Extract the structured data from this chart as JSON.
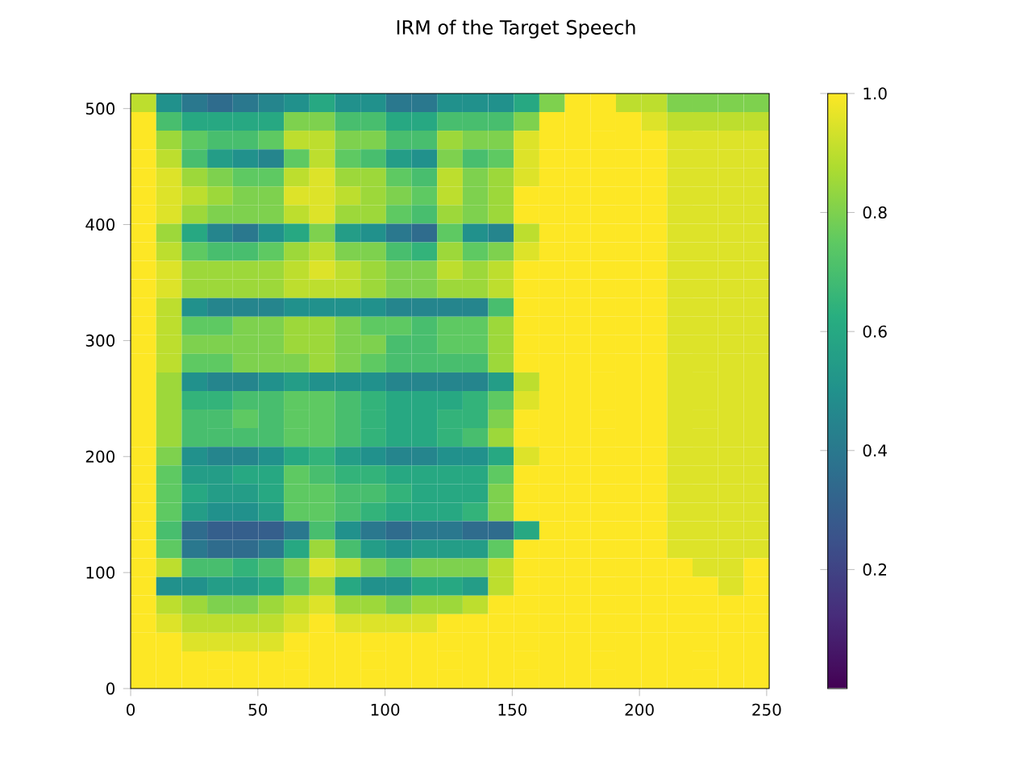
{
  "chart_data": {
    "type": "heatmap",
    "title": "IRM of the Target Speech",
    "cells": [
      [
        0.9,
        0.5,
        0.4,
        0.35,
        0.4,
        0.45,
        0.5,
        0.6,
        0.5,
        0.5,
        0.4,
        0.4,
        0.5,
        0.5,
        0.5,
        0.6,
        0.8,
        1,
        1,
        0.9,
        0.9,
        0.8,
        0.8,
        0.8,
        0.8
      ],
      [
        1,
        0.7,
        0.6,
        0.6,
        0.6,
        0.6,
        0.8,
        0.8,
        0.7,
        0.7,
        0.6,
        0.6,
        0.7,
        0.7,
        0.7,
        0.8,
        1,
        1,
        1,
        1,
        0.95,
        0.9,
        0.9,
        0.9,
        0.9
      ],
      [
        1,
        0.85,
        0.75,
        0.7,
        0.7,
        0.75,
        0.9,
        0.9,
        0.8,
        0.8,
        0.7,
        0.7,
        0.85,
        0.8,
        0.8,
        0.95,
        1,
        1,
        1,
        1,
        1,
        0.95,
        0.95,
        0.95,
        0.95
      ],
      [
        1,
        0.9,
        0.7,
        0.55,
        0.5,
        0.45,
        0.75,
        0.9,
        0.75,
        0.7,
        0.55,
        0.5,
        0.8,
        0.7,
        0.75,
        0.95,
        1,
        1,
        1,
        1,
        1,
        0.95,
        0.95,
        0.95,
        0.95
      ],
      [
        1,
        0.95,
        0.85,
        0.8,
        0.75,
        0.75,
        0.9,
        0.95,
        0.85,
        0.85,
        0.75,
        0.7,
        0.9,
        0.8,
        0.85,
        0.95,
        1,
        1,
        1,
        1,
        1,
        0.95,
        0.95,
        0.95,
        0.95
      ],
      [
        1,
        0.95,
        0.9,
        0.85,
        0.8,
        0.8,
        0.95,
        0.95,
        0.9,
        0.85,
        0.8,
        0.75,
        0.9,
        0.8,
        0.85,
        1,
        1,
        1,
        1,
        1,
        1,
        0.95,
        0.95,
        0.95,
        0.95
      ],
      [
        1,
        0.95,
        0.85,
        0.8,
        0.8,
        0.8,
        0.9,
        0.95,
        0.85,
        0.85,
        0.75,
        0.7,
        0.85,
        0.8,
        0.85,
        1,
        1,
        1,
        1,
        1,
        1,
        0.95,
        0.95,
        0.95,
        0.95
      ],
      [
        1,
        0.85,
        0.6,
        0.45,
        0.4,
        0.5,
        0.6,
        0.8,
        0.55,
        0.5,
        0.4,
        0.35,
        0.75,
        0.5,
        0.45,
        0.9,
        1,
        1,
        1,
        1,
        1,
        0.95,
        0.95,
        0.95,
        0.95
      ],
      [
        1,
        0.9,
        0.75,
        0.7,
        0.7,
        0.75,
        0.85,
        0.9,
        0.8,
        0.8,
        0.7,
        0.65,
        0.85,
        0.75,
        0.8,
        0.95,
        1,
        1,
        1,
        1,
        1,
        0.95,
        0.95,
        0.95,
        0.95
      ],
      [
        1,
        0.95,
        0.85,
        0.85,
        0.85,
        0.85,
        0.9,
        0.95,
        0.9,
        0.85,
        0.8,
        0.8,
        0.9,
        0.85,
        0.9,
        1,
        1,
        1,
        1,
        1,
        1,
        0.95,
        0.95,
        0.95,
        0.95
      ],
      [
        1,
        0.95,
        0.85,
        0.85,
        0.85,
        0.85,
        0.9,
        0.9,
        0.9,
        0.85,
        0.8,
        0.8,
        0.85,
        0.85,
        0.9,
        1,
        1,
        1,
        1,
        1,
        1,
        0.95,
        0.95,
        0.95,
        0.95
      ],
      [
        1,
        0.9,
        0.5,
        0.45,
        0.45,
        0.45,
        0.5,
        0.5,
        0.5,
        0.5,
        0.45,
        0.45,
        0.45,
        0.45,
        0.7,
        1,
        1,
        1,
        1,
        1,
        1,
        0.95,
        0.95,
        0.95,
        0.95
      ],
      [
        1,
        0.9,
        0.75,
        0.75,
        0.8,
        0.8,
        0.85,
        0.85,
        0.8,
        0.75,
        0.75,
        0.7,
        0.75,
        0.75,
        0.85,
        1,
        1,
        1,
        1,
        1,
        1,
        0.95,
        0.95,
        0.95,
        0.95
      ],
      [
        1,
        0.9,
        0.8,
        0.8,
        0.8,
        0.8,
        0.85,
        0.85,
        0.8,
        0.8,
        0.7,
        0.7,
        0.75,
        0.75,
        0.85,
        1,
        1,
        1,
        1,
        1,
        1,
        0.95,
        0.95,
        0.95,
        0.95
      ],
      [
        1,
        0.9,
        0.75,
        0.75,
        0.8,
        0.8,
        0.8,
        0.85,
        0.8,
        0.75,
        0.7,
        0.7,
        0.7,
        0.7,
        0.85,
        1,
        1,
        1,
        1,
        1,
        1,
        0.95,
        0.95,
        0.95,
        0.95
      ],
      [
        1,
        0.85,
        0.5,
        0.45,
        0.45,
        0.5,
        0.55,
        0.5,
        0.5,
        0.5,
        0.45,
        0.45,
        0.45,
        0.45,
        0.55,
        0.9,
        1,
        1,
        1,
        1,
        1,
        0.95,
        0.95,
        0.95,
        0.95
      ],
      [
        1,
        0.85,
        0.65,
        0.65,
        0.7,
        0.7,
        0.75,
        0.75,
        0.7,
        0.65,
        0.6,
        0.6,
        0.6,
        0.65,
        0.75,
        0.95,
        1,
        1,
        1,
        1,
        1,
        0.95,
        0.95,
        0.95,
        0.95
      ],
      [
        1,
        0.85,
        0.7,
        0.7,
        0.75,
        0.7,
        0.75,
        0.75,
        0.7,
        0.65,
        0.6,
        0.6,
        0.65,
        0.65,
        0.8,
        1,
        1,
        1,
        1,
        1,
        1,
        0.95,
        0.95,
        0.95,
        0.95
      ],
      [
        1,
        0.85,
        0.7,
        0.7,
        0.7,
        0.7,
        0.75,
        0.75,
        0.7,
        0.65,
        0.6,
        0.6,
        0.65,
        0.7,
        0.85,
        1,
        1,
        1,
        1,
        1,
        1,
        0.95,
        0.95,
        0.95,
        0.95
      ],
      [
        1,
        0.8,
        0.5,
        0.45,
        0.45,
        0.5,
        0.6,
        0.65,
        0.55,
        0.5,
        0.45,
        0.45,
        0.5,
        0.5,
        0.6,
        0.95,
        1,
        1,
        1,
        1,
        1,
        0.95,
        0.95,
        0.95,
        0.95
      ],
      [
        1,
        0.75,
        0.55,
        0.55,
        0.6,
        0.6,
        0.75,
        0.7,
        0.65,
        0.65,
        0.6,
        0.6,
        0.6,
        0.6,
        0.75,
        1,
        1,
        1,
        1,
        1,
        1,
        0.95,
        0.95,
        0.95,
        0.95
      ],
      [
        1,
        0.75,
        0.6,
        0.55,
        0.55,
        0.6,
        0.75,
        0.75,
        0.7,
        0.7,
        0.65,
        0.6,
        0.6,
        0.6,
        0.8,
        1,
        1,
        1,
        1,
        1,
        1,
        0.95,
        0.95,
        0.95,
        0.95
      ],
      [
        1,
        0.75,
        0.55,
        0.5,
        0.5,
        0.55,
        0.75,
        0.75,
        0.7,
        0.65,
        0.6,
        0.6,
        0.6,
        0.65,
        0.8,
        1,
        1,
        1,
        1,
        1,
        1,
        0.95,
        0.95,
        0.95,
        0.95
      ],
      [
        1,
        0.7,
        0.35,
        0.3,
        0.3,
        0.3,
        0.4,
        0.7,
        0.5,
        0.4,
        0.35,
        0.4,
        0.4,
        0.35,
        0.35,
        0.6,
        1,
        1,
        1,
        1,
        1,
        0.95,
        0.95,
        0.95,
        0.95
      ],
      [
        1,
        0.75,
        0.4,
        0.35,
        0.35,
        0.4,
        0.6,
        0.85,
        0.7,
        0.55,
        0.5,
        0.55,
        0.55,
        0.55,
        0.75,
        1,
        1,
        1,
        1,
        1,
        1,
        0.95,
        0.95,
        0.95,
        0.95
      ],
      [
        1,
        0.9,
        0.7,
        0.7,
        0.65,
        0.7,
        0.8,
        0.95,
        0.9,
        0.8,
        0.75,
        0.8,
        0.8,
        0.8,
        0.9,
        1,
        1,
        1,
        1,
        1,
        1,
        1,
        0.95,
        0.95,
        1
      ],
      [
        1,
        0.5,
        0.5,
        0.55,
        0.55,
        0.6,
        0.75,
        0.85,
        0.6,
        0.5,
        0.5,
        0.6,
        0.6,
        0.55,
        0.9,
        1,
        1,
        1,
        1,
        1,
        1,
        1,
        1,
        0.95,
        1
      ],
      [
        1,
        0.9,
        0.85,
        0.8,
        0.8,
        0.85,
        0.9,
        0.95,
        0.85,
        0.85,
        0.8,
        0.85,
        0.85,
        0.9,
        1,
        1,
        1,
        1,
        1,
        1,
        1,
        1,
        1,
        1,
        1
      ],
      [
        1,
        0.95,
        0.9,
        0.9,
        0.9,
        0.9,
        0.95,
        1,
        0.95,
        0.95,
        0.95,
        0.95,
        1,
        1,
        1,
        1,
        1,
        1,
        1,
        1,
        1,
        1,
        1,
        1,
        1
      ],
      [
        1,
        1,
        0.95,
        0.95,
        0.95,
        0.95,
        1,
        1,
        1,
        1,
        1,
        1,
        1,
        1,
        1,
        1,
        1,
        1,
        1,
        1,
        1,
        1,
        1,
        1,
        1
      ],
      [
        1,
        1,
        1,
        1,
        1,
        1,
        1,
        1,
        1,
        1,
        1,
        1,
        1,
        1,
        1,
        1,
        1,
        1,
        1,
        1,
        1,
        1,
        1,
        1,
        1
      ],
      [
        1,
        1,
        1,
        1,
        1,
        1,
        1,
        1,
        1,
        1,
        1,
        1,
        1,
        1,
        1,
        1,
        1,
        1,
        1,
        1,
        1,
        1,
        1,
        1,
        1
      ]
    ],
    "xlim": [
      0,
      251
    ],
    "ylim": [
      0,
      513
    ],
    "xticks": [
      0,
      50,
      100,
      150,
      200,
      250
    ],
    "yticks": [
      0,
      100,
      200,
      300,
      400,
      500
    ],
    "clim": [
      0,
      1
    ],
    "cticks": [
      0.2,
      0.4,
      0.6,
      0.8,
      {
        "value": 1,
        "label": "1.0"
      }
    ]
  }
}
